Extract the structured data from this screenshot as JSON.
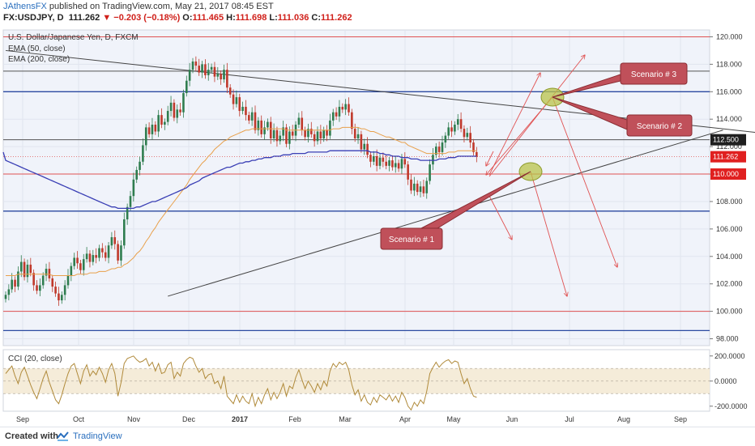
{
  "header": {
    "publisher": "JAthensFX",
    "published_text": "published on TradingView.com, May 21, 2017 08:45 EST",
    "symbol": "FX:USDJPY, D",
    "last": "111.262",
    "change": "−0.203 (−0.18%)",
    "open_label": "O:",
    "open": "111.465",
    "high_label": "H:",
    "high": "111.698",
    "low_label": "L:",
    "low": "111.036",
    "close_label": "C:",
    "close": "111.262"
  },
  "legend": {
    "title": "U.S. Dollar/Japanese Yen, D, FXCM",
    "ema50": "EMA (50, close)",
    "ema200": "EMA (200, close)",
    "cci": "CCI (20, close)"
  },
  "colors": {
    "up": "#2f7d4f",
    "down": "#c0392b",
    "ema50": "#e8a04b",
    "ema200": "#3a3fb5",
    "blue_level": "#2b4aa0",
    "red_level": "#e05252",
    "gray_level": "#555555",
    "callout_fill": "#c0505a",
    "callout_border": "#8a2d33",
    "ellipse": "#b9c34a",
    "cci_line": "#b08a3a",
    "cci_band": "#f5ecd9",
    "price_tag_dark": "#1f1f1f",
    "price_tag_red": "#e02020"
  },
  "chart_data": {
    "type": "candlestick",
    "symbol": "FX:USDJPY",
    "timeframe": "D",
    "x_axis_labels": [
      "Sep",
      "Oct",
      "Nov",
      "Dec",
      "2017",
      "Feb",
      "Mar",
      "Apr",
      "May",
      "Jun",
      "Jul",
      "Aug",
      "Sep"
    ],
    "price_axis": {
      "ticks": [
        "120.000",
        "118.000",
        "116.000",
        "114.000",
        "112.000",
        "110.000",
        "108.000",
        "106.000",
        "104.000",
        "102.000",
        "100.000",
        "98.000"
      ],
      "range": [
        97.5,
        120.5
      ]
    },
    "price_tags": [
      {
        "label": "112.500",
        "price": 112.5,
        "style": "dark"
      },
      {
        "label": "111.262",
        "price": 111.262,
        "style": "red"
      },
      {
        "label": "110.000",
        "price": 110.0,
        "style": "red"
      }
    ],
    "horizontal_levels": [
      {
        "price": 120.0,
        "color": "red"
      },
      {
        "price": 117.5,
        "color": "gray"
      },
      {
        "price": 116.0,
        "color": "blue"
      },
      {
        "price": 112.5,
        "color": "gray"
      },
      {
        "price": 110.0,
        "color": "red"
      },
      {
        "price": 107.3,
        "color": "blue"
      },
      {
        "price": 100.0,
        "color": "red"
      },
      {
        "price": 98.6,
        "color": "blue"
      }
    ],
    "close_series": [
      101.2,
      101.6,
      102.3,
      101.8,
      102.9,
      103.6,
      102.5,
      103.4,
      102.8,
      101.9,
      101.5,
      101.9,
      102.6,
      103.1,
      102.4,
      101.8,
      101.3,
      100.8,
      101.2,
      101.9,
      102.6,
      103.3,
      103.9,
      103.5,
      103.0,
      103.8,
      104.2,
      103.6,
      104.1,
      103.9,
      104.6,
      104.3,
      103.9,
      104.8,
      105.4,
      104.9,
      103.7,
      104.8,
      106.7,
      107.6,
      108.4,
      109.6,
      110.3,
      110.9,
      112.1,
      113.4,
      112.9,
      113.6,
      113.1,
      114.3,
      113.6,
      113.8,
      114.6,
      115.2,
      114.1,
      114.7,
      114.5,
      115.9,
      116.8,
      117.6,
      118.2,
      117.9,
      117.4,
      118.0,
      117.2,
      117.6,
      117.8,
      117.1,
      117.3,
      116.9,
      117.6,
      116.3,
      115.8,
      115.1,
      115.6,
      114.6,
      114.9,
      114.3,
      113.9,
      114.5,
      113.2,
      113.9,
      112.9,
      113.4,
      113.8,
      112.6,
      113.2,
      112.4,
      112.8,
      113.4,
      112.2,
      113.1,
      112.8,
      113.6,
      114.1,
      113.2,
      112.7,
      113.3,
      112.9,
      112.4,
      113.1,
      112.6,
      113.2,
      112.8,
      113.9,
      114.5,
      114.2,
      114.9,
      114.7,
      115.1,
      114.5,
      113.3,
      112.6,
      112.9,
      111.8,
      112.2,
      111.4,
      110.9,
      111.3,
      110.6,
      111.2,
      110.9,
      110.6,
      111.0,
      110.5,
      110.8,
      110.4,
      111.1,
      110.7,
      109.6,
      108.8,
      109.3,
      108.7,
      109.1,
      108.6,
      109.5,
      110.7,
      111.4,
      112.0,
      111.6,
      112.3,
      112.8,
      113.4,
      113.1,
      113.6,
      114.0,
      113.3,
      112.7,
      113.0,
      112.3,
      111.6,
      111.262
    ],
    "ema50": [
      102.6,
      102.6,
      102.6,
      102.6,
      102.7,
      102.7,
      102.7,
      102.7,
      102.7,
      102.7,
      102.7,
      102.7,
      102.7,
      102.7,
      102.7,
      102.6,
      102.6,
      102.6,
      102.6,
      102.6,
      102.6,
      102.6,
      102.6,
      102.7,
      102.7,
      102.7,
      102.7,
      102.8,
      102.8,
      102.8,
      102.9,
      102.9,
      102.9,
      103.0,
      103.1,
      103.1,
      103.2,
      103.2,
      103.4,
      103.5,
      103.7,
      103.9,
      104.2,
      104.4,
      104.7,
      105.1,
      105.4,
      105.8,
      106.1,
      106.5,
      106.8,
      107.1,
      107.4,
      107.7,
      108.0,
      108.3,
      108.6,
      108.9,
      109.2,
      109.6,
      109.9,
      110.2,
      110.5,
      110.8,
      111.0,
      111.3,
      111.5,
      111.8,
      112.0,
      112.2,
      112.4,
      112.5,
      112.7,
      112.8,
      112.9,
      113.0,
      113.1,
      113.2,
      113.2,
      113.3,
      113.3,
      113.3,
      113.3,
      113.3,
      113.3,
      113.3,
      113.3,
      113.3,
      113.3,
      113.3,
      113.2,
      113.2,
      113.2,
      113.2,
      113.2,
      113.2,
      113.2,
      113.2,
      113.2,
      113.2,
      113.2,
      113.2,
      113.2,
      113.2,
      113.2,
      113.3,
      113.3,
      113.3,
      113.4,
      113.4,
      113.4,
      113.4,
      113.4,
      113.4,
      113.3,
      113.3,
      113.2,
      113.1,
      113.1,
      113.0,
      112.9,
      112.8,
      112.7,
      112.7,
      112.6,
      112.5,
      112.4,
      112.3,
      112.3,
      112.1,
      112.0,
      111.9,
      111.8,
      111.7,
      111.6,
      111.5,
      111.5,
      111.5,
      111.5,
      111.5,
      111.5,
      111.5,
      111.6,
      111.6,
      111.6,
      111.7,
      111.7,
      111.7,
      111.7,
      111.7,
      111.7,
      111.7
    ],
    "ema200": [
      111.0,
      110.9,
      110.8,
      110.7,
      110.6,
      110.5,
      110.4,
      110.3,
      110.2,
      110.1,
      110.0,
      109.9,
      109.8,
      109.7,
      109.6,
      109.5,
      109.4,
      109.3,
      109.2,
      109.1,
      109.0,
      108.9,
      108.8,
      108.7,
      108.6,
      108.5,
      108.4,
      108.3,
      108.2,
      108.1,
      108.0,
      107.9,
      107.8,
      107.7,
      107.6,
      107.6,
      107.5,
      107.5,
      107.5,
      107.5,
      107.5,
      107.5,
      107.6,
      107.6,
      107.7,
      107.8,
      107.9,
      108.0,
      108.0,
      108.1,
      108.2,
      108.3,
      108.4,
      108.5,
      108.6,
      108.7,
      108.8,
      108.9,
      109.0,
      109.2,
      109.3,
      109.4,
      109.5,
      109.7,
      109.8,
      109.9,
      110.0,
      110.1,
      110.2,
      110.3,
      110.4,
      110.5,
      110.5,
      110.6,
      110.7,
      110.8,
      110.8,
      110.9,
      110.9,
      111.0,
      111.0,
      111.1,
      111.1,
      111.2,
      111.2,
      111.2,
      111.3,
      111.3,
      111.3,
      111.4,
      111.4,
      111.4,
      111.5,
      111.5,
      111.5,
      111.5,
      111.5,
      111.6,
      111.6,
      111.6,
      111.6,
      111.6,
      111.6,
      111.6,
      111.7,
      111.7,
      111.7,
      111.7,
      111.7,
      111.7,
      111.7,
      111.7,
      111.7,
      111.7,
      111.7,
      111.7,
      111.7,
      111.6,
      111.6,
      111.6,
      111.5,
      111.5,
      111.4,
      111.4,
      111.3,
      111.3,
      111.3,
      111.2,
      111.2,
      111.2,
      111.1,
      111.1,
      111.1,
      111.0,
      111.0,
      111.0,
      111.0,
      111.0,
      111.0,
      111.1,
      111.1,
      111.1,
      111.2,
      111.2,
      111.2,
      111.3,
      111.3,
      111.3,
      111.3,
      111.3,
      111.3,
      111.3
    ],
    "trendlines": [
      {
        "from": {
          "bar": 0,
          "price": 119.0
        },
        "to": {
          "bar": 250,
          "price": 112.8
        },
        "color": "gray"
      },
      {
        "from": {
          "bar": 52,
          "price": 101.1
        },
        "to": {
          "bar": 230,
          "price": 113.2
        },
        "color": "gray"
      }
    ],
    "annotations": [
      {
        "text": "Scenario # 1",
        "target_price": 110.7
      },
      {
        "text": "Scenario # 2",
        "target_price": 115.9
      },
      {
        "text": "Scenario # 3",
        "target_price": 115.9
      }
    ],
    "cci": {
      "label": "CCI (20, close)",
      "ticks": [
        "200.0000",
        "0.0000",
        "-200.0000"
      ],
      "range": [
        -240,
        250
      ],
      "band": [
        -100,
        100
      ],
      "values": [
        60,
        90,
        120,
        40,
        -20,
        70,
        110,
        40,
        -30,
        -90,
        -140,
        -60,
        20,
        80,
        -10,
        -80,
        -150,
        -180,
        -110,
        -20,
        60,
        120,
        140,
        60,
        -20,
        80,
        130,
        40,
        80,
        50,
        110,
        60,
        -10,
        90,
        140,
        60,
        -120,
        -10,
        140,
        180,
        190,
        200,
        170,
        150,
        160,
        180,
        120,
        150,
        80,
        140,
        60,
        70,
        130,
        150,
        20,
        70,
        40,
        140,
        170,
        190,
        180,
        120,
        70,
        100,
        20,
        50,
        60,
        -20,
        0,
        -60,
        40,
        -120,
        -150,
        -180,
        -110,
        -170,
        -120,
        -160,
        -180,
        -100,
        -200,
        -130,
        -180,
        -110,
        -60,
        -150,
        -90,
        -140,
        -90,
        -20,
        -120,
        -40,
        -60,
        30,
        90,
        10,
        -60,
        0,
        -40,
        -90,
        -20,
        -70,
        0,
        -40,
        80,
        140,
        110,
        150,
        130,
        150,
        90,
        -30,
        -110,
        -70,
        -160,
        -110,
        -170,
        -190,
        -130,
        -170,
        -110,
        -130,
        -150,
        -110,
        -160,
        -120,
        -170,
        -90,
        -130,
        -200,
        -230,
        -170,
        -200,
        -150,
        -180,
        -80,
        60,
        110,
        150,
        110,
        140,
        160,
        170,
        140,
        160,
        150,
        60,
        -20,
        20,
        -60,
        -120,
        -130
      ]
    }
  },
  "footer": {
    "created_with": "Created with",
    "brand": "TradingView"
  }
}
